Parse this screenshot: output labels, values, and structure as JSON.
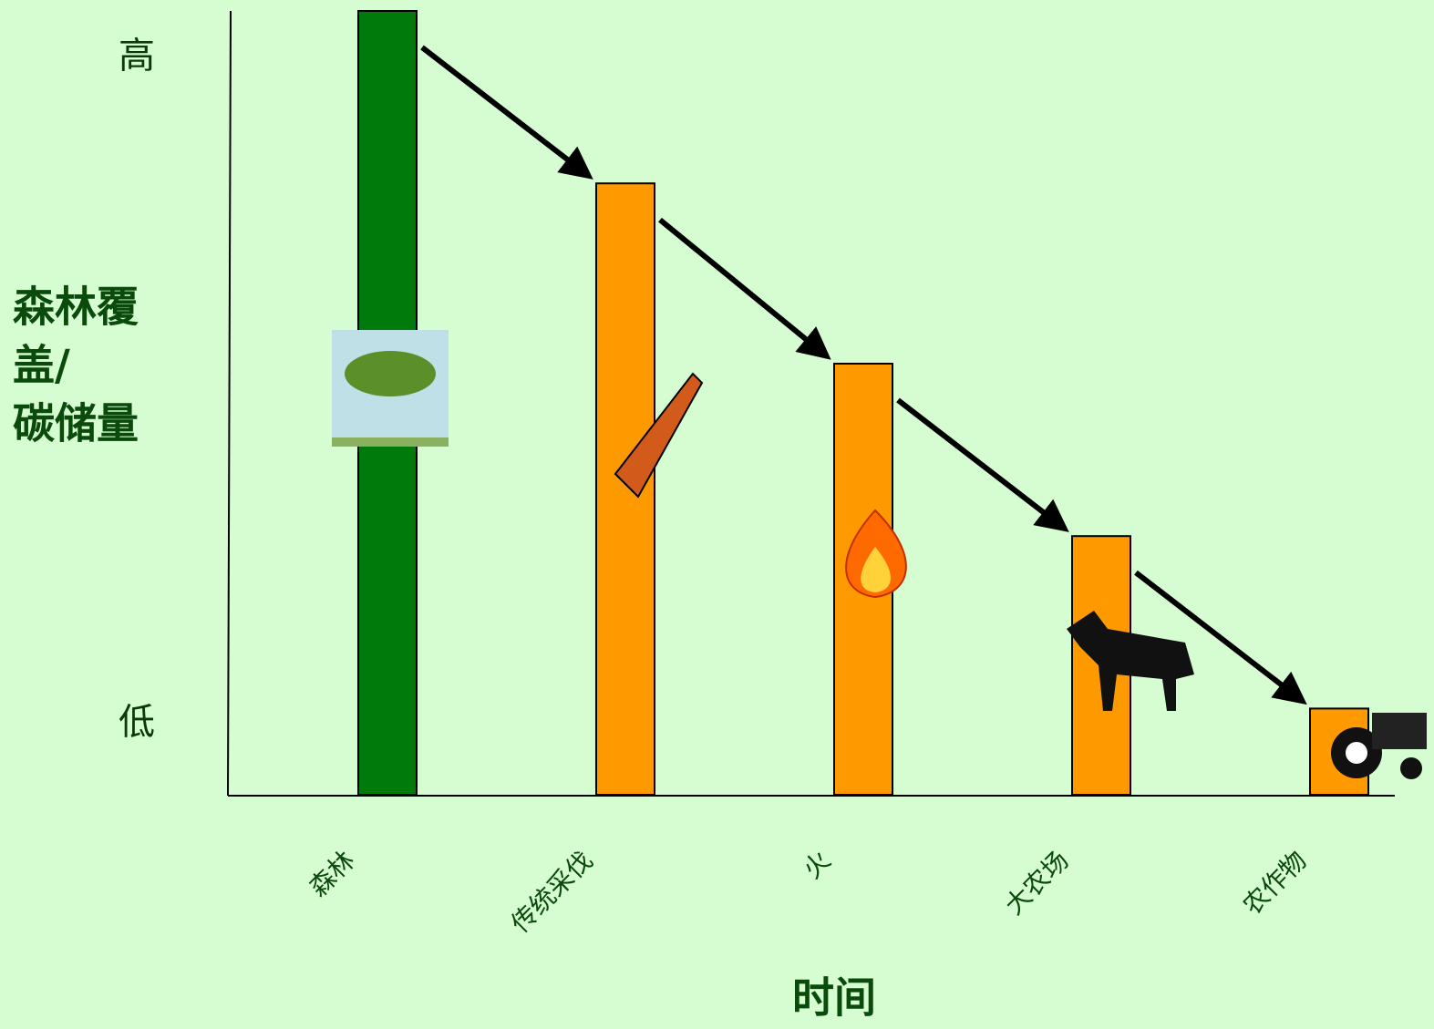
{
  "chart_data": {
    "type": "bar",
    "ylabel_lines": [
      "森林覆",
      "盖/",
      "碳储量"
    ],
    "xlabel": "时间",
    "categories": [
      "森林",
      "传统采伐",
      "火",
      "大农场",
      "农作物"
    ],
    "values": [
      100,
      78,
      55,
      33,
      11
    ],
    "colors": [
      "#007a0a",
      "#ff9900",
      "#ff9900",
      "#ff9900",
      "#ff9900"
    ],
    "ylim": [
      0,
      100
    ],
    "yticks": [
      {
        "value": 94,
        "label": "高"
      },
      {
        "value": 9,
        "label": "低"
      }
    ]
  }
}
